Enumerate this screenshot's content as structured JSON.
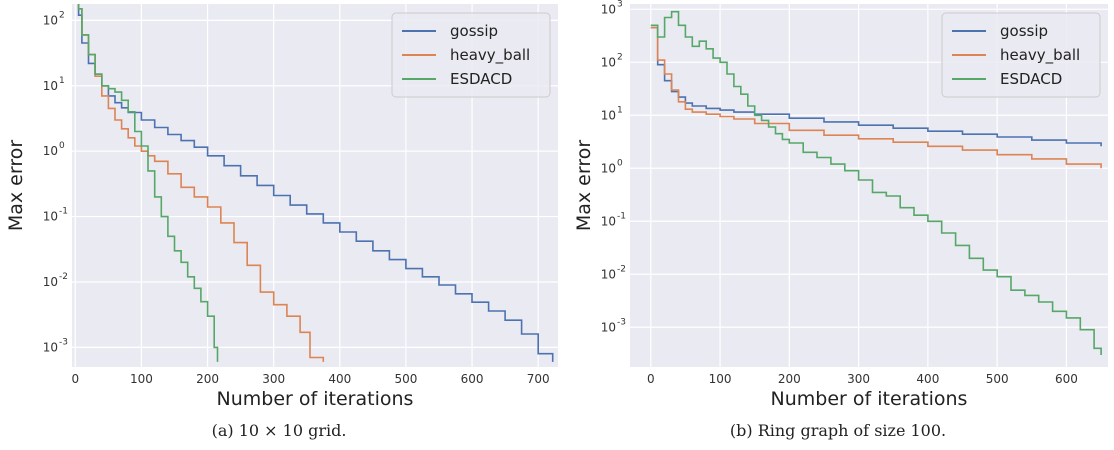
{
  "figure": {
    "captions": [
      "(a) 10 × 10 grid.",
      "(b) Ring graph of size 100."
    ]
  },
  "chart_data": [
    {
      "type": "line",
      "title": "",
      "xlabel": "Number of iterations",
      "ylabel": "Max error",
      "xlim": [
        -5,
        730
      ],
      "xticks": [
        0,
        100,
        200,
        300,
        400,
        500,
        600,
        700
      ],
      "ylim_log10": [
        -3.3,
        2.25
      ],
      "yticks_exp": [
        -3,
        -2,
        -1,
        0,
        1,
        2
      ],
      "yscale": "log",
      "grid": true,
      "legend": "top-right",
      "colors": {
        "gossip": "#4c72b0",
        "heavy_ball": "#dd8452",
        "ESDACD": "#55a868",
        "background": "#eaeaf2"
      },
      "series": [
        {
          "name": "gossip",
          "x": [
            0,
            5,
            10,
            20,
            30,
            40,
            50,
            60,
            70,
            80,
            100,
            120,
            140,
            160,
            180,
            200,
            225,
            250,
            275,
            300,
            325,
            350,
            375,
            400,
            425,
            450,
            475,
            500,
            525,
            550,
            575,
            600,
            625,
            650,
            675,
            700,
            722
          ],
          "y": [
            300,
            120,
            45,
            22,
            15,
            10,
            7,
            5.5,
            4.6,
            3.9,
            3.0,
            2.3,
            1.8,
            1.45,
            1.15,
            0.85,
            0.6,
            0.42,
            0.3,
            0.21,
            0.15,
            0.11,
            0.08,
            0.058,
            0.042,
            0.03,
            0.022,
            0.016,
            0.012,
            0.009,
            0.0066,
            0.0049,
            0.0036,
            0.0026,
            0.0016,
            0.0008,
            0.0006
          ]
        },
        {
          "name": "heavy_ball",
          "x": [
            0,
            5,
            10,
            20,
            30,
            40,
            50,
            60,
            70,
            80,
            90,
            100,
            110,
            120,
            140,
            160,
            180,
            200,
            220,
            240,
            260,
            280,
            300,
            320,
            340,
            355,
            375
          ],
          "y": [
            300,
            150,
            60,
            30,
            14,
            7,
            4.5,
            3.0,
            2.2,
            1.6,
            1.2,
            1.0,
            0.85,
            0.7,
            0.45,
            0.28,
            0.2,
            0.14,
            0.08,
            0.04,
            0.018,
            0.007,
            0.0045,
            0.003,
            0.0017,
            0.0007,
            0.0006
          ]
        },
        {
          "name": "ESDACD",
          "x": [
            0,
            5,
            10,
            20,
            30,
            40,
            50,
            60,
            70,
            80,
            90,
            100,
            110,
            120,
            130,
            140,
            150,
            160,
            170,
            180,
            190,
            200,
            210,
            215
          ],
          "y": [
            300,
            150,
            60,
            30,
            15,
            10,
            9,
            8,
            6,
            4,
            2,
            1.2,
            0.5,
            0.2,
            0.1,
            0.05,
            0.03,
            0.02,
            0.012,
            0.008,
            0.005,
            0.003,
            0.001,
            0.0006
          ]
        }
      ]
    },
    {
      "type": "line",
      "title": "",
      "xlabel": "Number of iterations",
      "ylabel": "Max error",
      "xlim": [
        -30,
        660
      ],
      "xticks": [
        0,
        100,
        200,
        300,
        400,
        500,
        600
      ],
      "ylim_log10": [
        -3.75,
        3.1
      ],
      "yticks_exp": [
        -3,
        -2,
        -1,
        0,
        1,
        2,
        3
      ],
      "yscale": "log",
      "grid": true,
      "legend": "top-right",
      "colors": {
        "gossip": "#4c72b0",
        "heavy_ball": "#dd8452",
        "ESDACD": "#55a868",
        "background": "#eaeaf2"
      },
      "series": [
        {
          "name": "gossip",
          "x": [
            0,
            10,
            20,
            30,
            40,
            50,
            60,
            80,
            100,
            120,
            150,
            200,
            250,
            300,
            350,
            400,
            450,
            500,
            550,
            600,
            650
          ],
          "y": [
            450,
            90,
            45,
            28,
            22,
            17,
            15,
            13.5,
            12.5,
            11.5,
            10.5,
            8.8,
            7.5,
            6.5,
            5.7,
            5.0,
            4.4,
            3.9,
            3.4,
            3.0,
            2.6
          ]
        },
        {
          "name": "heavy_ball",
          "x": [
            0,
            10,
            20,
            30,
            40,
            50,
            60,
            80,
            100,
            120,
            150,
            200,
            250,
            300,
            350,
            400,
            450,
            500,
            550,
            600,
            650
          ],
          "y": [
            450,
            110,
            60,
            30,
            18,
            13,
            11.5,
            10.5,
            9.5,
            8.5,
            7.0,
            5.2,
            4.2,
            3.6,
            3.1,
            2.6,
            2.2,
            1.8,
            1.5,
            1.2,
            1.0
          ]
        },
        {
          "name": "ESDACD",
          "x": [
            0,
            10,
            20,
            30,
            40,
            50,
            60,
            70,
            80,
            90,
            100,
            110,
            120,
            130,
            140,
            150,
            160,
            170,
            180,
            190,
            200,
            220,
            240,
            260,
            280,
            300,
            320,
            340,
            360,
            380,
            400,
            420,
            440,
            460,
            480,
            500,
            520,
            540,
            560,
            580,
            600,
            620,
            640,
            650
          ],
          "y": [
            500,
            300,
            700,
            900,
            500,
            300,
            200,
            250,
            180,
            120,
            100,
            60,
            35,
            25,
            15,
            10,
            8,
            6,
            4.5,
            3.5,
            3.0,
            2.0,
            1.6,
            1.2,
            0.9,
            0.6,
            0.35,
            0.3,
            0.18,
            0.13,
            0.1,
            0.06,
            0.035,
            0.02,
            0.012,
            0.009,
            0.005,
            0.004,
            0.003,
            0.002,
            0.0015,
            0.0009,
            0.0004,
            0.0003
          ]
        }
      ]
    }
  ]
}
